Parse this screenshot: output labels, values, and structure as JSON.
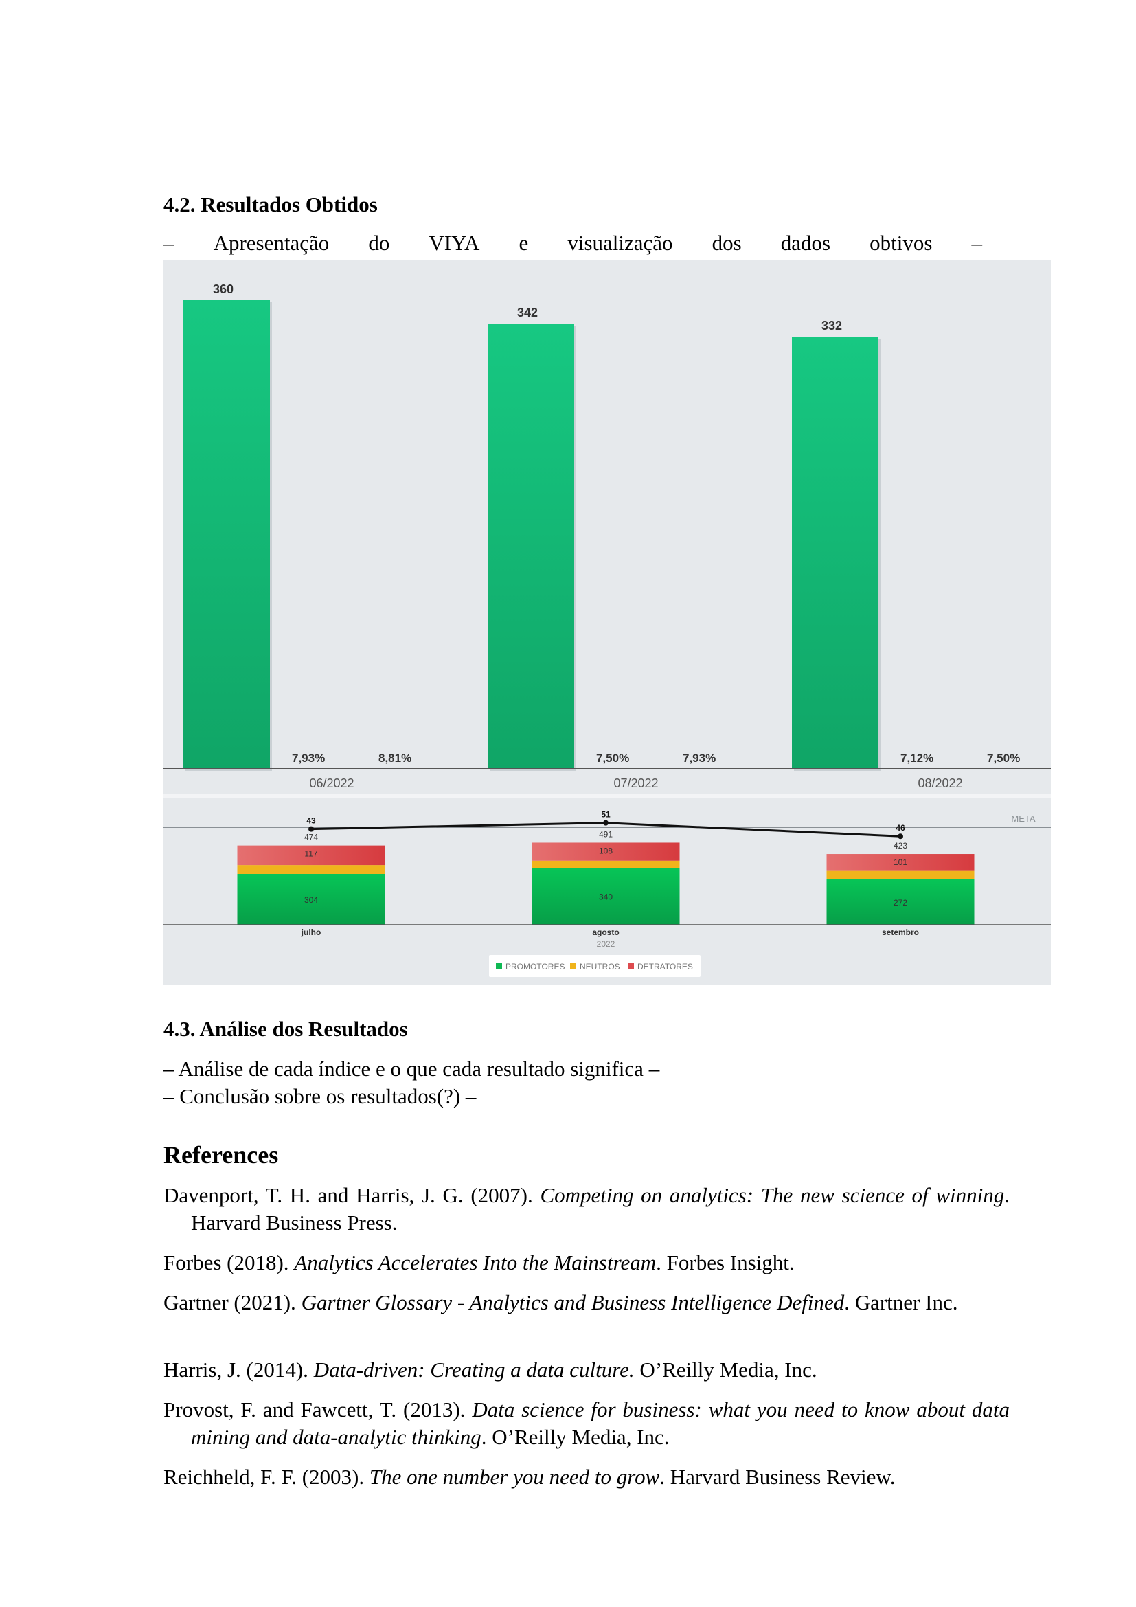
{
  "section_42": {
    "title": "4.2.  Resultados Obtidos",
    "subtitle_words": [
      "–",
      "Apresentação",
      "do",
      "VIYA",
      "e",
      "visualização",
      "dos",
      "dados",
      "obtivos",
      "–"
    ]
  },
  "chart_data": [
    {
      "type": "bar",
      "categories": [
        "06/2022",
        "07/2022",
        "08/2022"
      ],
      "series": [
        {
          "values": [
            360,
            342,
            332
          ]
        }
      ],
      "percent_labels": [
        [
          "7,93%",
          "8,81%"
        ],
        [
          "7,50%",
          "7,93%"
        ],
        [
          "7,12%",
          "7,50%"
        ]
      ],
      "ylim": [
        0,
        370
      ],
      "colors": {
        "bar": "#18c47f",
        "background": "#e6e9ec"
      }
    },
    {
      "type": "bar",
      "stacked": true,
      "categories": [
        "julho",
        "agosto",
        "setembro"
      ],
      "xlabel": "2022",
      "series": [
        {
          "name": "PROMOTORES",
          "values": [
            304,
            340,
            272
          ],
          "color": "#0fb954"
        },
        {
          "name": "NEUTROS",
          "values": [
            53,
            43,
            50
          ],
          "color": "#f0b41c"
        },
        {
          "name": "DETRATORES",
          "values": [
            117,
            108,
            101
          ],
          "color": "#dd4b4f"
        }
      ],
      "totals": [
        474,
        491,
        423
      ],
      "line": {
        "name": "META",
        "values": [
          43,
          51,
          46
        ]
      },
      "legend": "bottom"
    }
  ],
  "section_43": {
    "title": "4.3.  Análise dos Resultados",
    "line1": "– Análise de cada índice e o que cada resultado significa –",
    "line2": "– Conclusão sobre os resultados(?) –"
  },
  "references": {
    "title": "References",
    "items": [
      {
        "pre": "Davenport, T. H. and Harris, J. G. (2007). ",
        "title": "Competing on analytics: The new science of winning",
        "post": ". Harvard Business Press."
      },
      {
        "pre": "Forbes (2018). ",
        "title": "Analytics Accelerates Into the Mainstream",
        "post": ". Forbes Insight."
      },
      {
        "pre": "Gartner (2021). ",
        "title": "Gartner Glossary - Analytics and Business Intelligence Defined",
        "post": ". Gartner Inc."
      },
      {
        "pre": "Harris, J. (2014). ",
        "title": "Data-driven: Creating a data culture.",
        "post": " O’Reilly Media, Inc."
      },
      {
        "pre": "Provost, F. and Fawcett, T. (2013). ",
        "title": "Data science for business: what you need to know about data mining and data-analytic thinking",
        "post": ". O’Reilly Media, Inc."
      },
      {
        "pre": "Reichheld, F. F. (2003). ",
        "title": "The one number you need to grow",
        "post": ". Harvard Business Review."
      }
    ]
  }
}
